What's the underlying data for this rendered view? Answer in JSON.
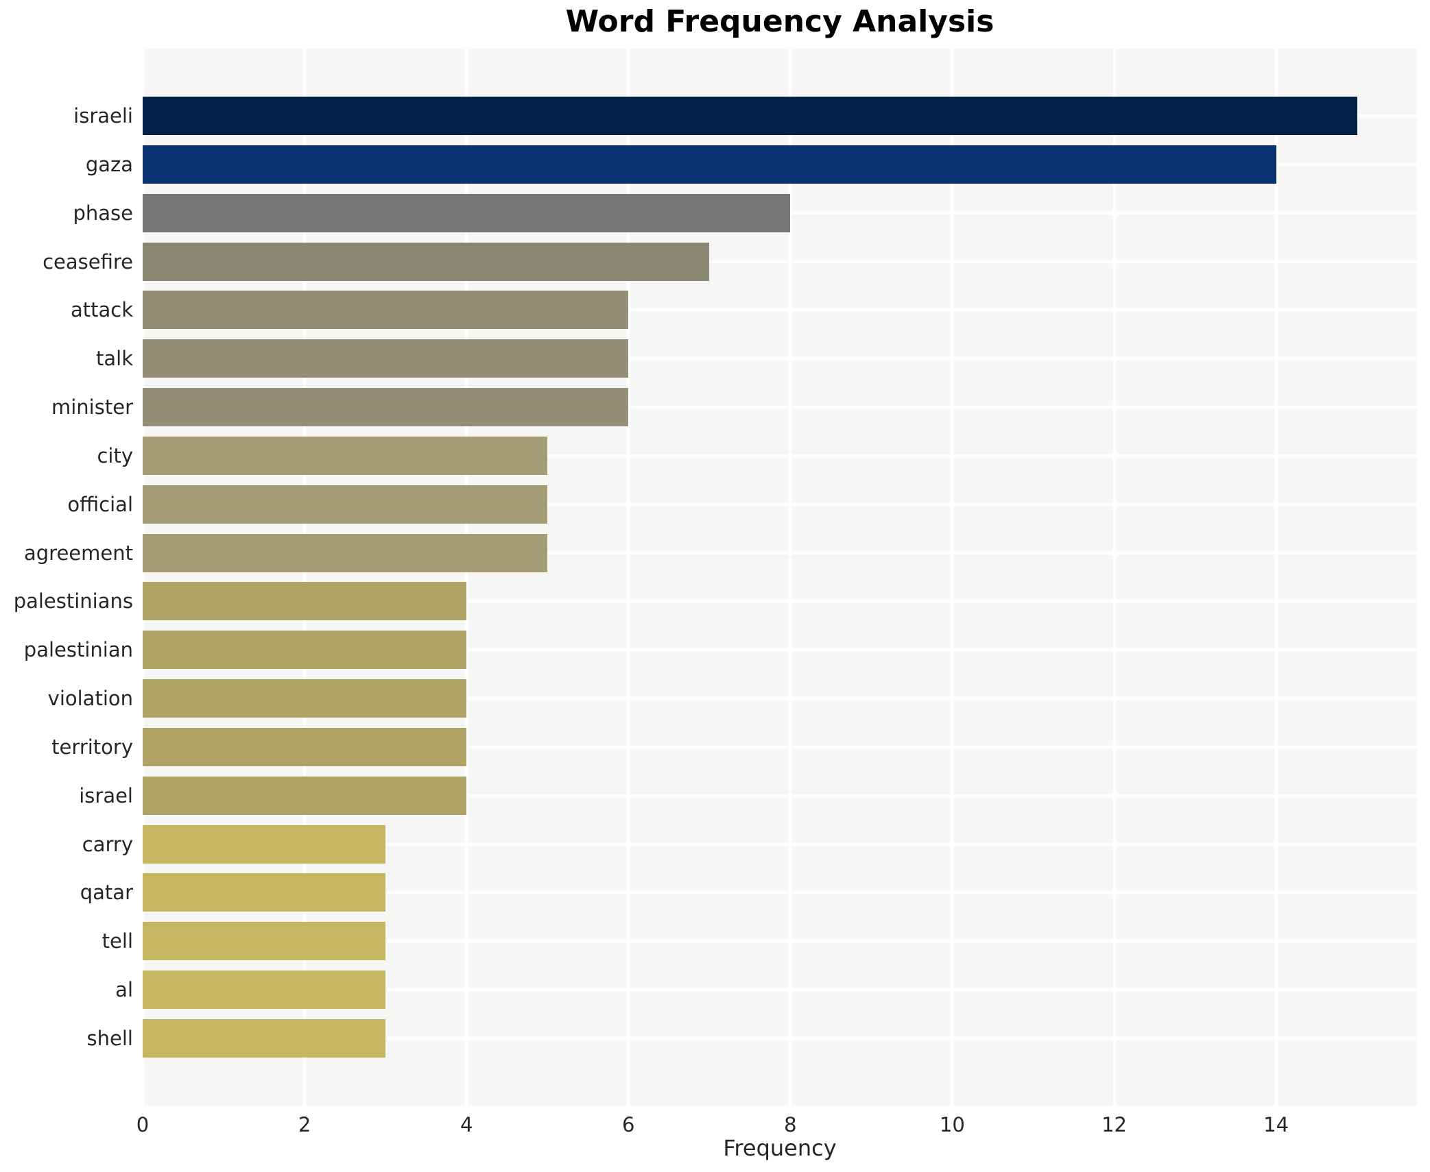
{
  "chart_data": {
    "type": "bar",
    "orientation": "horizontal",
    "title": "Word Frequency Analysis",
    "xlabel": "Frequency",
    "ylabel": "",
    "categories": [
      "israeli",
      "gaza",
      "phase",
      "ceasefire",
      "attack",
      "talk",
      "minister",
      "city",
      "official",
      "agreement",
      "palestinians",
      "palestinian",
      "violation",
      "territory",
      "israel",
      "carry",
      "qatar",
      "tell",
      "al",
      "shell"
    ],
    "values": [
      15,
      14,
      8,
      7,
      6,
      6,
      6,
      5,
      5,
      5,
      4,
      4,
      4,
      4,
      4,
      3,
      3,
      3,
      3,
      3
    ],
    "bar_colors": [
      "#032148",
      "#0a3270",
      "#767676",
      "#898672",
      "#938e75",
      "#938e75",
      "#938e75",
      "#a49c72",
      "#a49c72",
      "#a49c72",
      "#aea264",
      "#aea264",
      "#aea264",
      "#aea264",
      "#aea264",
      "#c6b561",
      "#c6b561",
      "#c6b561",
      "#c6b561",
      "#c6b561"
    ],
    "xticks": [
      0,
      2,
      4,
      6,
      8,
      10,
      12,
      14
    ],
    "xlim": [
      0,
      15.74
    ],
    "grid": "white gridlines on light panel, vertical at x ticks and horizontal at bar centers",
    "legend": "none"
  },
  "colors": {
    "figure_background": "#ffffff",
    "plot_background": "#f6f6f4",
    "gridline": "#ffffff",
    "title_text": "#000000",
    "axis_text": "#262626"
  }
}
